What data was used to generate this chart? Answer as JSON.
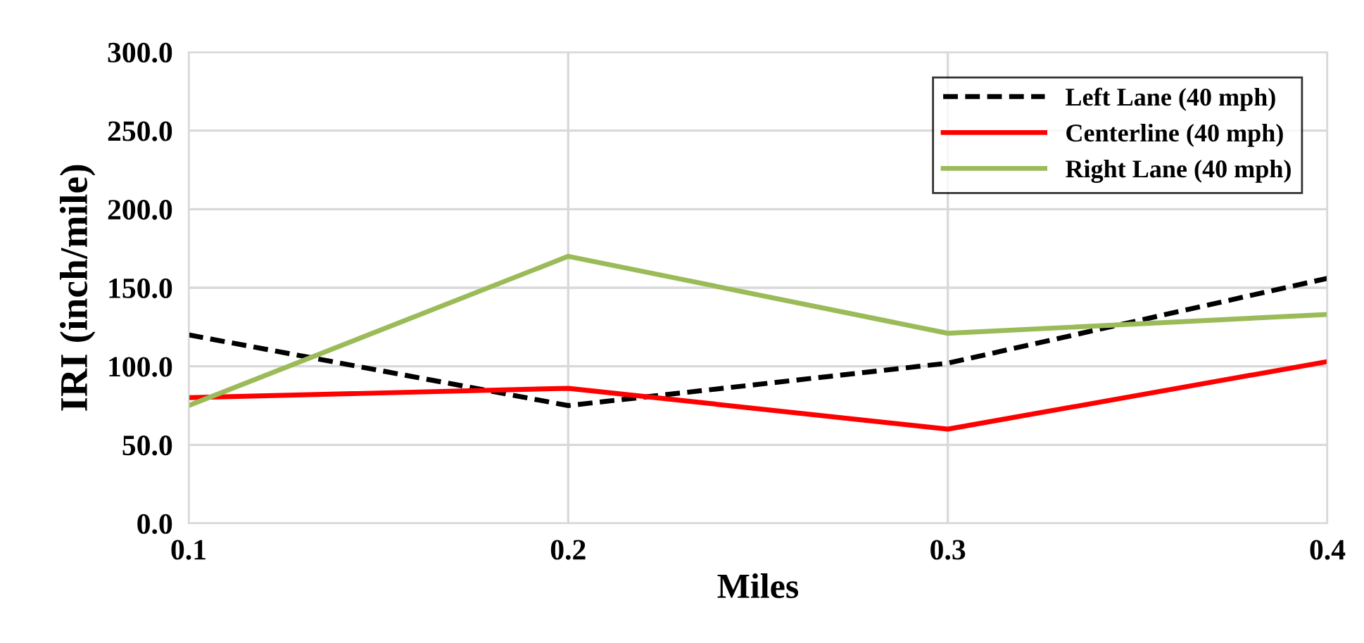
{
  "chart_data": {
    "type": "line",
    "xlabel": "Miles",
    "ylabel": "IRI (inch/mile)",
    "x": [
      0.1,
      0.2,
      0.3,
      0.4
    ],
    "series": [
      {
        "name": "Left Lane (40 mph)",
        "color": "#000000",
        "line_style": "dashed",
        "values": [
          120,
          75,
          102,
          156
        ]
      },
      {
        "name": "Centerline (40 mph)",
        "color": "#ff0000",
        "line_style": "solid",
        "values": [
          80,
          86,
          60,
          103
        ]
      },
      {
        "name": "Right Lane (40 mph)",
        "color": "#9bbb59",
        "line_style": "solid",
        "values": [
          75,
          170,
          121,
          133
        ]
      }
    ],
    "xlim": [
      0.1,
      0.4
    ],
    "xticks": [
      0.1,
      0.2,
      0.3,
      0.4
    ],
    "ylim": [
      0,
      300
    ],
    "yticks": [
      {
        "value": 0,
        "label": "0.0"
      },
      {
        "value": 50,
        "label": "50.0"
      },
      {
        "value": 100,
        "label": "100.0"
      },
      {
        "value": 150,
        "label": "150.0"
      },
      {
        "value": 200,
        "label": "200.0"
      },
      {
        "value": 250,
        "label": "250.0"
      },
      {
        "value": 300,
        "label": "300.0"
      }
    ],
    "grid": true,
    "legend": "top right"
  }
}
